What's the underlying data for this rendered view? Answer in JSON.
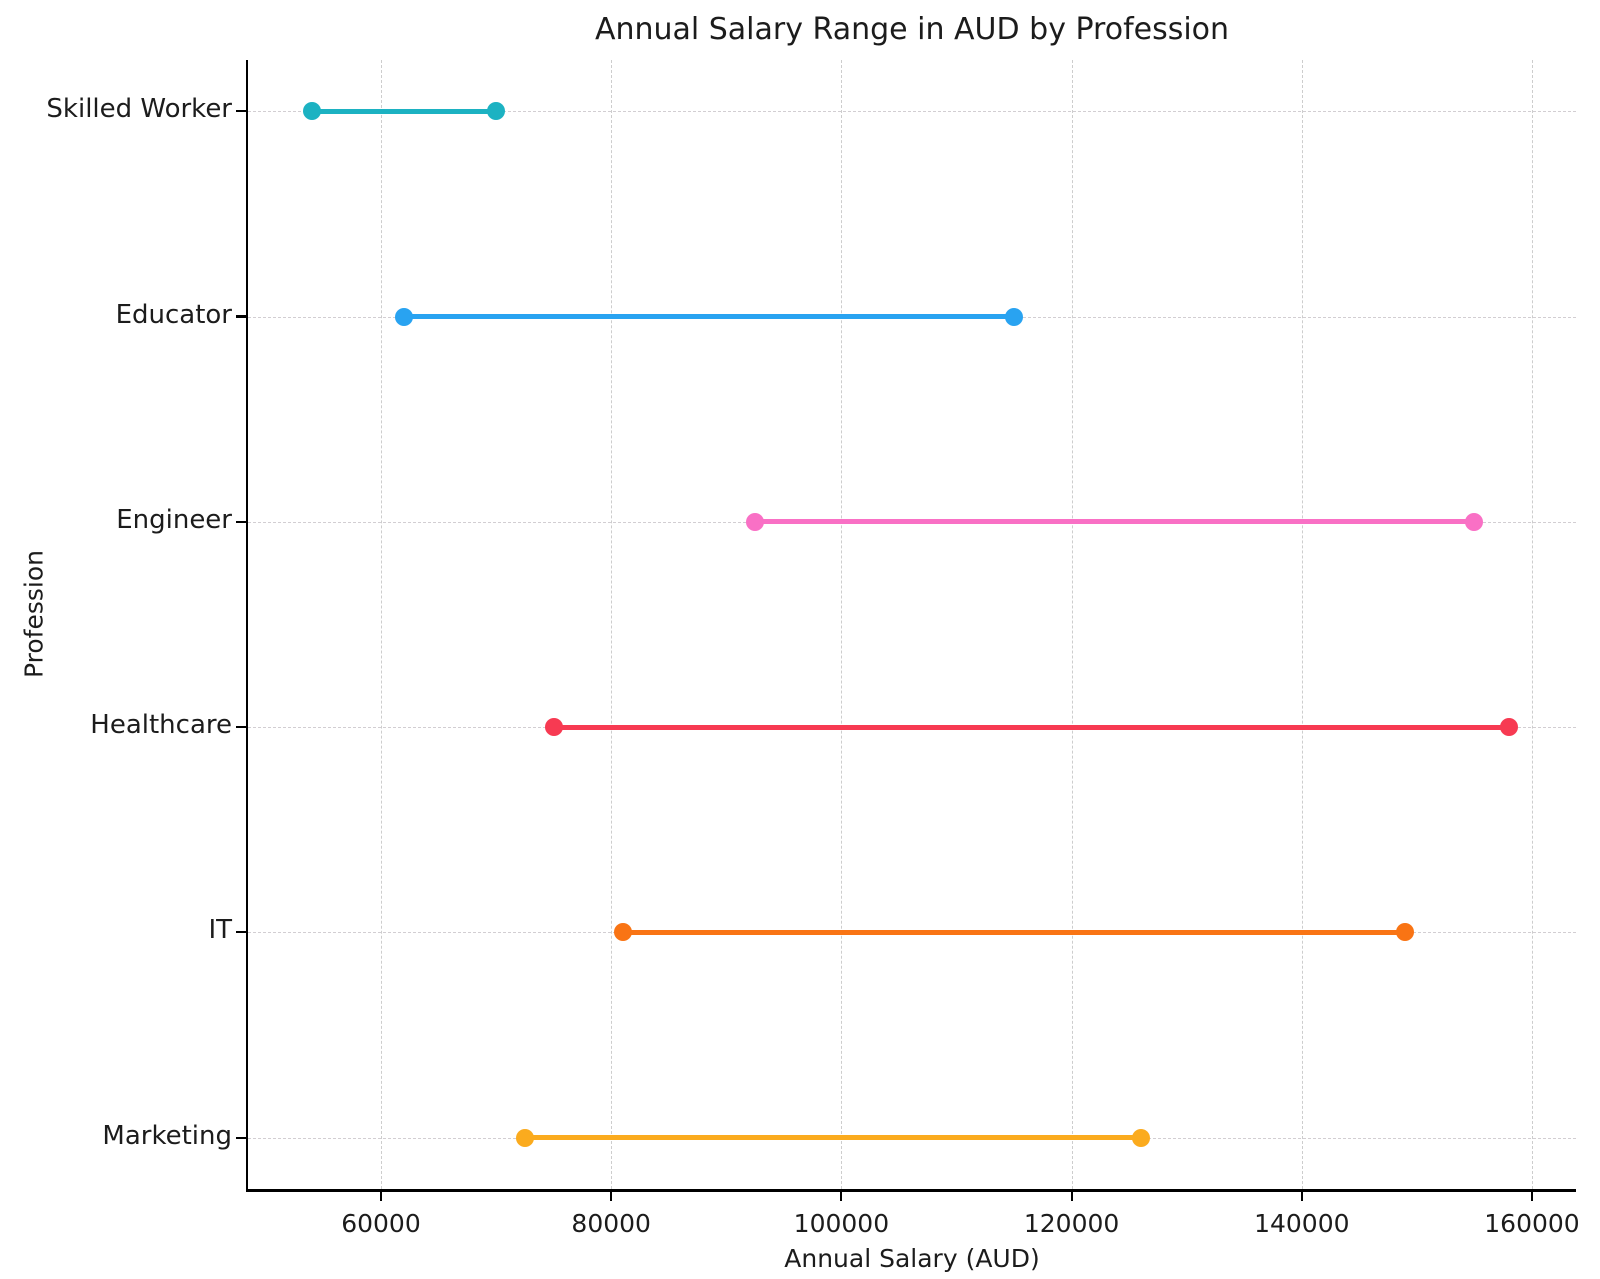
{
  "chart_data": {
    "type": "dumbbell",
    "title": "Annual Salary Range in AUD by Profession",
    "xlabel": "Annual Salary (AUD)",
    "ylabel": "Profession",
    "categories": [
      "Skilled Worker",
      "Educator",
      "Engineer",
      "Healthcare",
      "IT",
      "Marketing"
    ],
    "series": [
      {
        "name": "Skilled Worker",
        "min": 54000,
        "max": 70000,
        "color": "#1cb2c2"
      },
      {
        "name": "Educator",
        "min": 62000,
        "max": 115000,
        "color": "#29a3f1"
      },
      {
        "name": "Engineer",
        "min": 92500,
        "max": 155000,
        "color": "#f970c5"
      },
      {
        "name": "Healthcare",
        "min": 75000,
        "max": 158000,
        "color": "#f73a52"
      },
      {
        "name": "IT",
        "min": 81000,
        "max": 149000,
        "color": "#f97414"
      },
      {
        "name": "Marketing",
        "min": 72500,
        "max": 126000,
        "color": "#fbab1e"
      }
    ],
    "xticks": [
      60000,
      80000,
      100000,
      120000,
      140000,
      160000
    ],
    "xlim": [
      48445,
      163822
    ],
    "grid": {
      "on": true,
      "style": "dashed",
      "color": "#cdcdcd"
    },
    "legend": "none",
    "background": "#ffffff",
    "text_color": "#1c1c1c",
    "spine_color": "#000000"
  }
}
